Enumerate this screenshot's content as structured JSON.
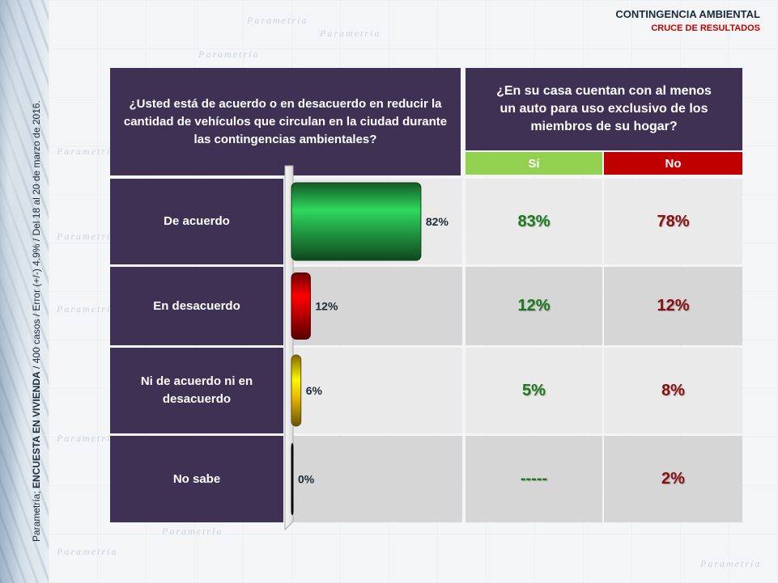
{
  "header": {
    "title": "CONTINGENCIA AMBIENTAL",
    "subtitle": "CRUCE DE RESULTADOS"
  },
  "sidebar": {
    "prefix": "Parametría; ",
    "survey": "ENCUESTA EN VIVIENDA",
    "details": " / 400 casos / Error (+/-) 4.9% / Del 18 al 20 de marzo de 2016."
  },
  "watermark_text": "Parametría",
  "question_left": "¿Usted está de acuerdo o en desacuerdo en reducir la cantidad de vehículos que circulan en la ciudad durante las contingencias ambientales?",
  "question_right": "¿En su casa cuentan con al menos un auto para uso exclusivo de los miembros de su hogar?",
  "columns": {
    "si": "Sí",
    "no": "No"
  },
  "colors": {
    "panel": "#3f3154",
    "si_header": "#92d050",
    "no_header": "#c00000",
    "si_text": "#1e7a1e",
    "no_text": "#8a0f0f"
  },
  "rows": [
    {
      "label": "De acuerdo",
      "si": "83%",
      "no": "78%"
    },
    {
      "label": "En desacuerdo",
      "si": "12%",
      "no": "12%"
    },
    {
      "label": "Ni de acuerdo ni en desacuerdo",
      "si": "5%",
      "no": "8%"
    },
    {
      "label": "No sabe",
      "si": "-----",
      "no": "2%"
    }
  ],
  "chart_data": {
    "type": "bar",
    "orientation": "horizontal",
    "categories": [
      "De acuerdo",
      "En desacuerdo",
      "Ni de acuerdo ni en desacuerdo",
      "No sabe"
    ],
    "values": [
      82,
      12,
      6,
      0
    ],
    "value_labels": [
      "82%",
      "12%",
      "6%",
      "0%"
    ],
    "colors": [
      "#22a045",
      "#c00000",
      "#e6b800",
      "#111111"
    ],
    "xlim": [
      0,
      100
    ],
    "title": "",
    "xlabel": "",
    "ylabel": ""
  }
}
